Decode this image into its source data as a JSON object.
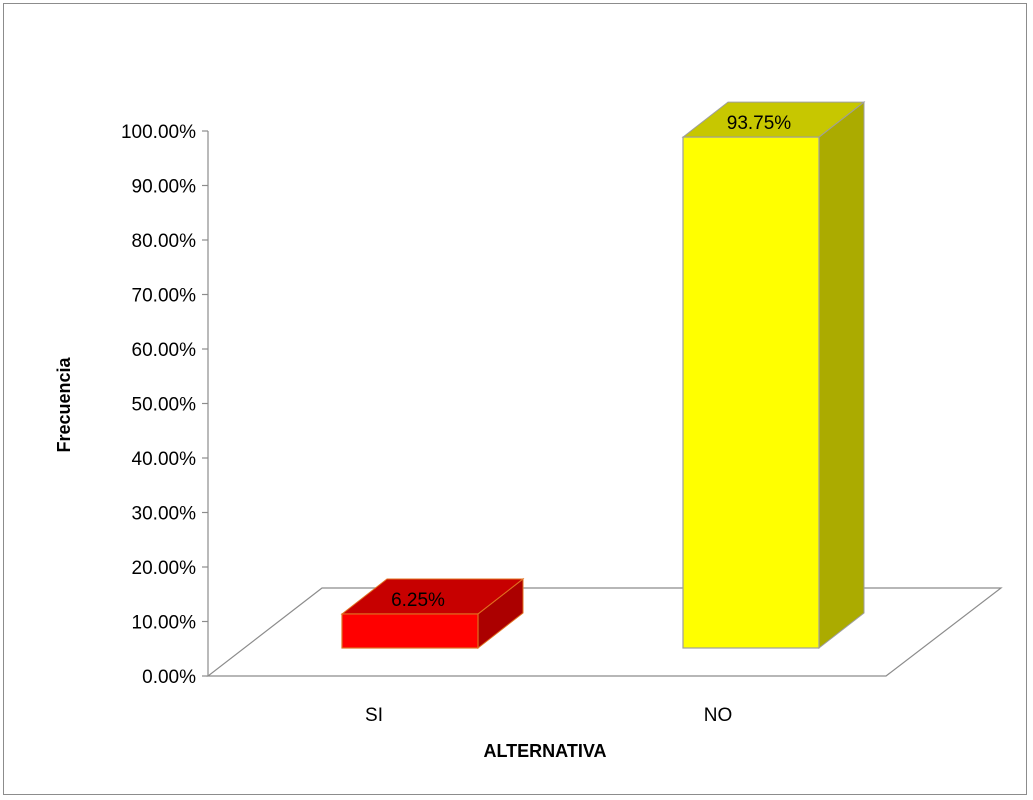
{
  "chart_data": {
    "type": "bar",
    "title": "",
    "xlabel": "ALTERNATIVA",
    "ylabel": "Frecuencia",
    "categories": [
      "SI",
      "NO"
    ],
    "values": [
      6.25,
      93.75
    ],
    "data_labels": [
      "6.25%",
      "93.75%"
    ],
    "colors": [
      "#ff0000",
      "#ffff00"
    ],
    "ylim": [
      0,
      100
    ],
    "yticks": [
      0,
      10,
      20,
      30,
      40,
      50,
      60,
      70,
      80,
      90,
      100
    ],
    "ytick_labels": [
      "0.00%",
      "10.00%",
      "20.00%",
      "30.00%",
      "40.00%",
      "50.00%",
      "60.00%",
      "70.00%",
      "80.00%",
      "90.00%",
      "100.00%"
    ],
    "grid": false,
    "legend": "none",
    "style": "3d-column"
  }
}
